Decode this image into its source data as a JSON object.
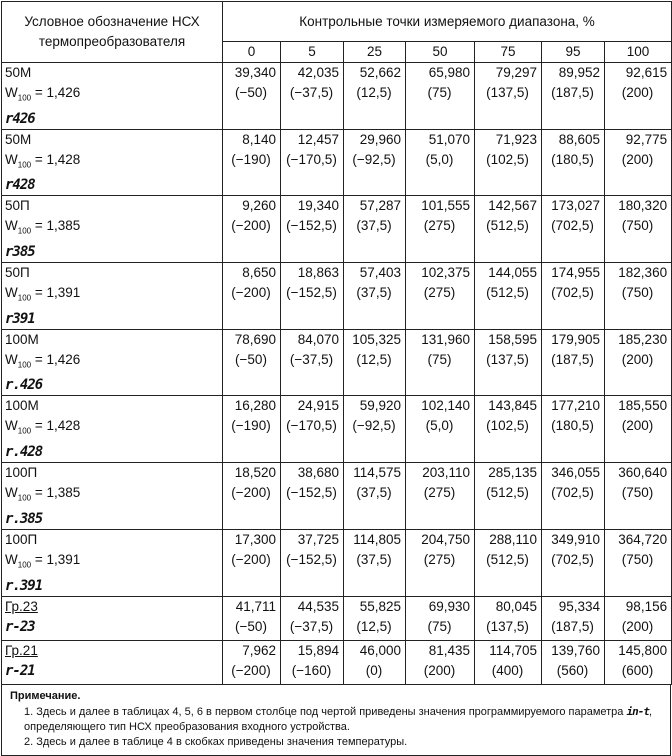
{
  "table": {
    "header": {
      "designation": "Условное обозначение НСХ термопреобразователя",
      "points_title": "Контрольные точки измеряемого диапазона, %",
      "points": [
        "0",
        "5",
        "25",
        "50",
        "75",
        "95",
        "100"
      ]
    },
    "rows": [
      {
        "name": "50М",
        "w": {
          "symbol": "W",
          "sub": "100",
          "value": "= 1,426"
        },
        "code": "r426",
        "values": [
          "39,340",
          "42,035",
          "52,662",
          "65,980",
          "79,297",
          "89,952",
          "92,615"
        ],
        "temps": [
          "(−50)",
          "(−37,5)",
          "(12,5)",
          "(75)",
          "(137,5)",
          "(187,5)",
          "(200)"
        ]
      },
      {
        "name": "50М",
        "w": {
          "symbol": "W",
          "sub": "100",
          "value": "= 1,428"
        },
        "code": "r428",
        "values": [
          "8,140",
          "12,457",
          "29,960",
          "51,070",
          "71,923",
          "88,605",
          "92,775"
        ],
        "temps": [
          "(−190)",
          "(−170,5)",
          "(−92,5)",
          "(5,0)",
          "(102,5)",
          "(180,5)",
          "(200)"
        ]
      },
      {
        "name": "50П",
        "w": {
          "symbol": "W",
          "sub": "100",
          "value": "= 1,385"
        },
        "code": "r385",
        "values": [
          "9,260",
          "19,340",
          "57,287",
          "101,555",
          "142,567",
          "173,027",
          "180,320"
        ],
        "temps": [
          "(−200)",
          "(−152,5)",
          "(37,5)",
          "(275)",
          "(512,5)",
          "(702,5)",
          "(750)"
        ]
      },
      {
        "name": "50П",
        "w": {
          "symbol": "W",
          "sub": "100",
          "value": "= 1,391"
        },
        "code": "r391",
        "values": [
          "8,650",
          "18,863",
          "57,403",
          "102,375",
          "144,055",
          "174,955",
          "182,360"
        ],
        "temps": [
          "(−200)",
          "(−152,5)",
          "(37,5)",
          "(275)",
          "(512,5)",
          "(702,5)",
          "(750)"
        ]
      },
      {
        "name": "100М",
        "w": {
          "symbol": "W",
          "sub": "100",
          "value": "= 1,426"
        },
        "code": "r.426",
        "values": [
          "78,690",
          "84,070",
          "105,325",
          "131,960",
          "158,595",
          "179,905",
          "185,230"
        ],
        "temps": [
          "(−50)",
          "(−37,5)",
          "(12,5)",
          "(75)",
          "(137,5)",
          "(187,5)",
          "(200)"
        ]
      },
      {
        "name": "100М",
        "w": {
          "symbol": "W",
          "sub": "100",
          "value": "= 1,428"
        },
        "code": "r.428",
        "values": [
          "16,280",
          "24,915",
          "59,920",
          "102,140",
          "143,845",
          "177,210",
          "185,550"
        ],
        "temps": [
          "(−190)",
          "(−170,5)",
          "(−92,5)",
          "(5,0)",
          "(102,5)",
          "(180,5)",
          "(200)"
        ]
      },
      {
        "name": "100П",
        "w": {
          "symbol": "W",
          "sub": "100",
          "value": "= 1,385"
        },
        "code": "r.385",
        "values": [
          "18,520",
          "38,680",
          "114,575",
          "203,110",
          "285,135",
          "346,055",
          "360,640"
        ],
        "temps": [
          "(−200)",
          "(−152,5)",
          "(37,5)",
          "(275)",
          "(512,5)",
          "(702,5)",
          "(750)"
        ]
      },
      {
        "name": "100П",
        "w": {
          "symbol": "W",
          "sub": "100",
          "value": "= 1,391"
        },
        "code": "r.391",
        "values": [
          "17,300",
          "37,725",
          "114,805",
          "204,750",
          "288,110",
          "349,910",
          "364,720"
        ],
        "temps": [
          "(−200)",
          "(−152,5)",
          "(37,5)",
          "(275)",
          "(512,5)",
          "(702,5)",
          "(750)"
        ]
      },
      {
        "name": "Гр.23",
        "code": "r-23",
        "values": [
          "41,711",
          "44,535",
          "55,825",
          "69,930",
          "80,045",
          "95,334",
          "98,156"
        ],
        "temps": [
          "(−50)",
          "(−37,5)",
          "(12,5)",
          "(75)",
          "(137,5)",
          "(187,5)",
          "(200)"
        ]
      },
      {
        "name": "Гр.21",
        "code": "r-21",
        "values": [
          "7,962",
          "15,894",
          "46,000",
          "81,435",
          "114,705",
          "139,760",
          "145,800"
        ],
        "temps": [
          "(−200)",
          "(−160)",
          "(0)",
          "(200)",
          "(400)",
          "(560)",
          "(600)"
        ]
      }
    ]
  },
  "notes": {
    "title": "Примечание.",
    "note1": {
      "before": "1. Здесь и далее в таблицах 4, 5, 6 в первом столбце под чертой приведены значения программируемого параметра",
      "code": "in-t",
      "after": ", определяющего тип НСХ преобразования входного устройства."
    },
    "note2": "2. Здесь и далее в таблице 4 в скобках приведены значения температуры."
  }
}
